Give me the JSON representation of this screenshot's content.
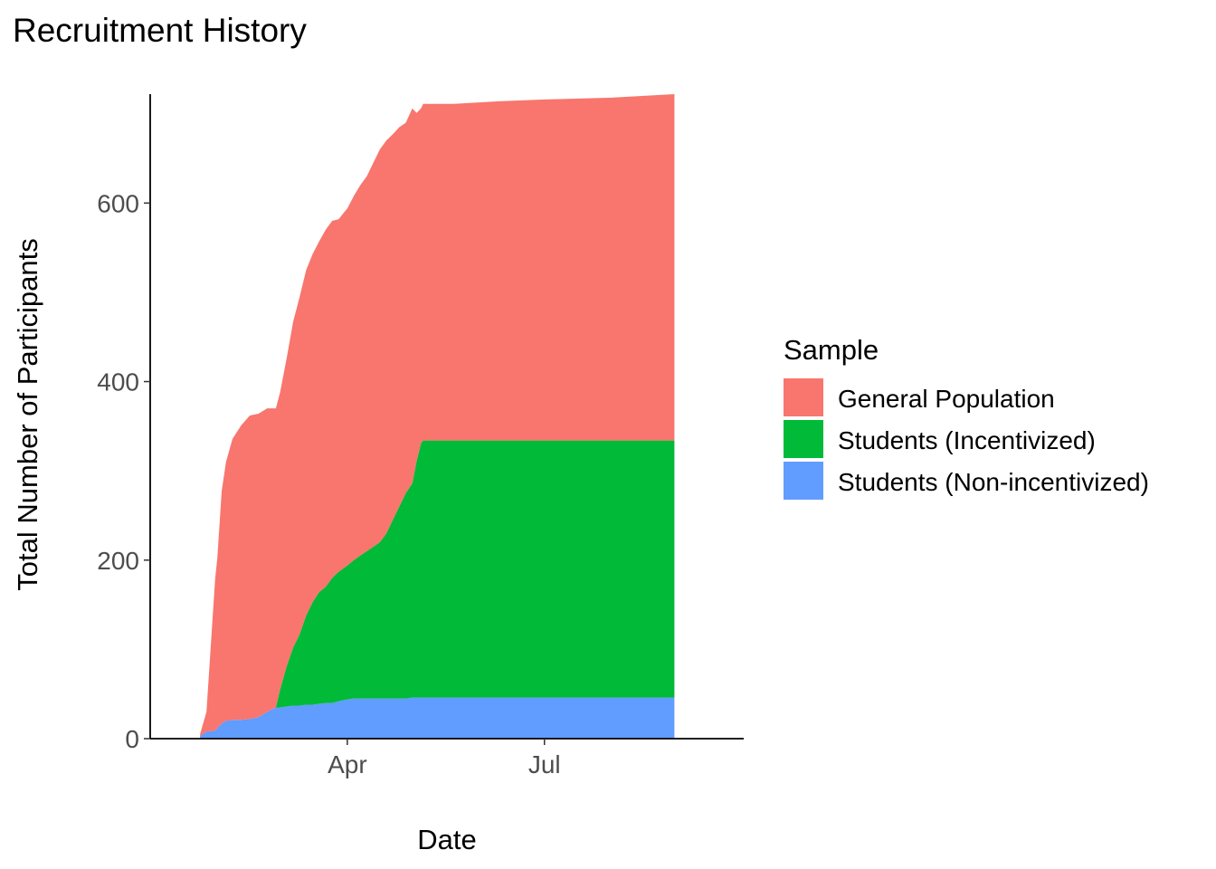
{
  "chart_data": {
    "type": "area",
    "stacked": true,
    "title": "Recruitment History",
    "xlabel": "Date",
    "ylabel": "Total Number of Participants",
    "x_ticks": [
      "Apr",
      "Jul"
    ],
    "y_ticks": [
      0,
      200,
      400,
      600
    ],
    "ylim": [
      0,
      722
    ],
    "grid": false,
    "legend": {
      "title": "Sample",
      "position": "right"
    },
    "x_dates": [
      "2000-01-24",
      "2000-01-27",
      "2000-01-31",
      "2000-02-01",
      "2000-02-03",
      "2000-02-05",
      "2000-02-08",
      "2000-02-12",
      "2000-02-16",
      "2000-02-20",
      "2000-02-24",
      "2000-02-28",
      "2000-03-01",
      "2000-03-04",
      "2000-03-07",
      "2000-03-10",
      "2000-03-13",
      "2000-03-16",
      "2000-03-19",
      "2000-03-22",
      "2000-03-25",
      "2000-03-28",
      "2000-04-01",
      "2000-04-04",
      "2000-04-07",
      "2000-04-10",
      "2000-04-13",
      "2000-04-16",
      "2000-04-19",
      "2000-04-22",
      "2000-04-25",
      "2000-04-28",
      "2000-05-01",
      "2000-05-03",
      "2000-05-05",
      "2000-05-06",
      "2000-05-20",
      "2000-06-10",
      "2000-07-01",
      "2000-08-01",
      "2000-08-30"
    ],
    "series": [
      {
        "name": "Students (Non-incentivized)",
        "color": "#619CFF",
        "values": [
          3,
          8,
          9,
          12,
          17,
          20,
          21,
          21,
          22,
          24,
          30,
          35,
          35,
          36,
          37,
          37,
          38,
          38,
          39,
          40,
          40,
          42,
          44,
          45,
          45,
          45,
          45,
          45,
          45,
          45,
          45,
          45,
          46,
          46,
          46,
          46,
          46,
          46,
          46,
          46,
          46
        ]
      },
      {
        "name": "Students (Incentivized)",
        "color": "#00BA38",
        "values": [
          0,
          0,
          0,
          0,
          0,
          0,
          0,
          0,
          0,
          0,
          0,
          0,
          20,
          45,
          65,
          80,
          100,
          115,
          125,
          130,
          140,
          145,
          150,
          155,
          160,
          165,
          170,
          175,
          185,
          200,
          215,
          230,
          240,
          265,
          285,
          288,
          288,
          288,
          288,
          288,
          288
        ]
      },
      {
        "name": "General Population",
        "color": "#F8766D",
        "values": [
          2,
          22,
          170,
          190,
          260,
          290,
          315,
          330,
          340,
          340,
          340,
          335,
          333,
          345,
          365,
          378,
          387,
          390,
          393,
          400,
          400,
          395,
          400,
          408,
          415,
          420,
          430,
          440,
          440,
          432,
          425,
          415,
          420,
          390,
          375,
          377,
          377,
          380,
          382,
          384,
          388
        ]
      }
    ]
  }
}
